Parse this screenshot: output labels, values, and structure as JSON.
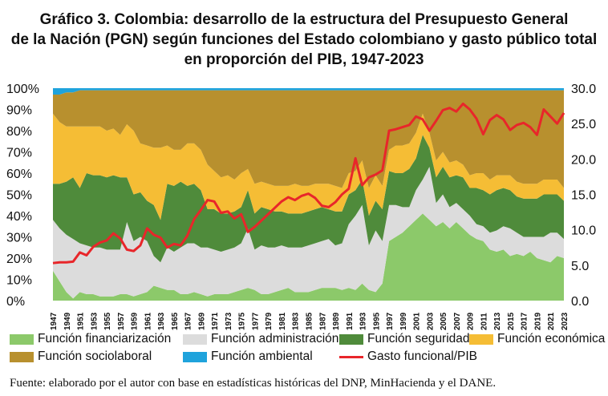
{
  "title_lines": [
    "Gráfico 3. Colombia: desarrollo de la estructura del Presupuesto General",
    "de la Nación (PGN) según funciones del Estado colombiano y gasto público total",
    "en proporción del PIB, 1947-2023"
  ],
  "source": "Fuente: elaborado por el autor con base en estadísticas históricas del DNP, MinHacienda y el DANE.",
  "legend": [
    {
      "label": "Función financiarización",
      "color": "#8cc96a",
      "kind": "area"
    },
    {
      "label": "Función administración",
      "color": "#dcdcdc",
      "kind": "area"
    },
    {
      "label": "Función seguridad",
      "color": "#4f8b3b",
      "kind": "area"
    },
    {
      "label": "Función económica",
      "color": "#f5bd35",
      "kind": "area"
    },
    {
      "label": "Función sociolaboral",
      "color": "#b8902e",
      "kind": "area"
    },
    {
      "label": "Función ambiental",
      "color": "#1fa3dc",
      "kind": "area"
    },
    {
      "label": "Gasto funcional/PIB",
      "color": "#e8262a",
      "kind": "line"
    }
  ],
  "chart_data": {
    "type": "area",
    "stacked": true,
    "x": [
      1947,
      1948,
      1949,
      1950,
      1951,
      1952,
      1953,
      1954,
      1955,
      1956,
      1957,
      1958,
      1959,
      1960,
      1961,
      1962,
      1963,
      1964,
      1965,
      1966,
      1967,
      1968,
      1969,
      1970,
      1971,
      1972,
      1973,
      1974,
      1975,
      1976,
      1977,
      1978,
      1979,
      1980,
      1981,
      1982,
      1983,
      1984,
      1985,
      1986,
      1987,
      1988,
      1989,
      1990,
      1991,
      1992,
      1993,
      1994,
      1995,
      1996,
      1997,
      1998,
      1999,
      2000,
      2001,
      2002,
      2003,
      2004,
      2005,
      2006,
      2007,
      2008,
      2009,
      2010,
      2011,
      2012,
      2013,
      2014,
      2015,
      2016,
      2017,
      2018,
      2019,
      2020,
      2021,
      2022,
      2023
    ],
    "x_tick_labels": [
      "1947",
      "1949",
      "1951",
      "1953",
      "1955",
      "1957",
      "1959",
      "1961",
      "1963",
      "1965",
      "1967",
      "1969",
      "1971",
      "1973",
      "1975",
      "1977",
      "1979",
      "1981",
      "1983",
      "1985",
      "1987",
      "1989",
      "1991",
      "1993",
      "1995",
      "1997",
      "1999",
      "2001",
      "2003",
      "2005",
      "2007",
      "2009",
      "2011",
      "2013",
      "2015",
      "2017",
      "2019",
      "2021",
      "2023"
    ],
    "y_left_ticks": [
      "0%",
      "10%",
      "20%",
      "30%",
      "40%",
      "50%",
      "60%",
      "70%",
      "80%",
      "90%",
      "100%"
    ],
    "y_left_range": [
      0,
      100
    ],
    "y_right_ticks": [
      "0.0",
      "5.0",
      "10.0",
      "15.0",
      "20.0",
      "25.0",
      "30.0"
    ],
    "y_right_range": [
      0,
      30
    ],
    "series": [
      {
        "name": "Función financiarización",
        "color": "#8cc96a",
        "values": [
          14,
          9,
          4,
          1,
          4,
          3,
          3,
          2,
          2,
          2,
          3,
          3,
          2,
          3,
          4,
          7,
          6,
          5,
          5,
          3,
          3,
          4,
          3,
          2,
          3,
          3,
          3,
          4,
          5,
          6,
          5,
          3,
          3,
          4,
          5,
          6,
          4,
          4,
          4,
          5,
          6,
          6,
          6,
          5,
          6,
          5,
          8,
          5,
          4,
          8,
          28,
          30,
          32,
          35,
          38,
          41,
          38,
          35,
          37,
          34,
          37,
          34,
          31,
          29,
          28,
          24,
          23,
          24,
          21,
          22,
          21,
          23,
          20,
          19,
          18,
          21,
          20
        ]
      },
      {
        "name": "Función administración",
        "color": "#dcdcdc",
        "values": [
          24,
          25,
          27,
          28,
          23,
          23,
          22,
          23,
          22,
          22,
          21,
          34,
          26,
          27,
          24,
          14,
          12,
          20,
          18,
          22,
          24,
          23,
          22,
          23,
          21,
          20,
          21,
          21,
          22,
          28,
          19,
          23,
          22,
          21,
          21,
          19,
          21,
          21,
          22,
          22,
          22,
          23,
          20,
          22,
          30,
          35,
          37,
          21,
          29,
          20,
          17,
          15,
          12,
          9,
          14,
          16,
          25,
          11,
          13,
          10,
          9,
          9,
          9,
          7,
          7,
          8,
          10,
          11,
          13,
          10,
          9,
          7,
          10,
          11,
          14,
          11,
          9
        ]
      },
      {
        "name": "Función seguridad",
        "color": "#4f8b3b",
        "values": [
          17,
          21,
          25,
          29,
          26,
          34,
          34,
          34,
          34,
          35,
          34,
          21,
          22,
          21,
          19,
          24,
          20,
          30,
          31,
          31,
          27,
          28,
          27,
          18,
          19,
          18,
          17,
          17,
          17,
          18,
          17,
          18,
          18,
          17,
          16,
          16,
          16,
          16,
          16,
          16,
          16,
          14,
          16,
          15,
          14,
          12,
          12,
          14,
          14,
          15,
          16,
          15,
          16,
          18,
          15,
          21,
          9,
          12,
          13,
          14,
          13,
          15,
          13,
          17,
          17,
          18,
          19,
          18,
          18,
          17,
          18,
          18,
          18,
          20,
          18,
          18,
          18
        ]
      },
      {
        "name": "Función económica",
        "color": "#f5bd35",
        "values": [
          33,
          29,
          26,
          24,
          29,
          22,
          23,
          23,
          22,
          22,
          20,
          25,
          30,
          23,
          26,
          27,
          34,
          18,
          17,
          15,
          20,
          19,
          19,
          21,
          18,
          17,
          18,
          15,
          16,
          10,
          14,
          12,
          12,
          12,
          12,
          13,
          14,
          13,
          12,
          12,
          11,
          12,
          12,
          11,
          10,
          9,
          9,
          13,
          12,
          11,
          10,
          13,
          13,
          12,
          12,
          10,
          7,
          8,
          7,
          7,
          7,
          6,
          6,
          7,
          8,
          7,
          7,
          6,
          7,
          7,
          7,
          7,
          7,
          7,
          7,
          7,
          6
        ]
      },
      {
        "name": "Función sociolaboral",
        "color": "#b8902e",
        "values": [
          9,
          13,
          16,
          16,
          17,
          17,
          17,
          17,
          19,
          18,
          21,
          16,
          19,
          25,
          26,
          27,
          27,
          26,
          28,
          28,
          25,
          25,
          28,
          35,
          38,
          41,
          40,
          42,
          39,
          37,
          44,
          43,
          44,
          45,
          45,
          45,
          44,
          45,
          45,
          44,
          44,
          44,
          45,
          46,
          39,
          38,
          33,
          46,
          40,
          45,
          28,
          26,
          26,
          25,
          20,
          11,
          20,
          33,
          29,
          34,
          33,
          35,
          40,
          39,
          39,
          42,
          40,
          40,
          40,
          43,
          44,
          44,
          44,
          42,
          42,
          42,
          46
        ]
      },
      {
        "name": "Función ambiental",
        "color": "#1fa3dc",
        "values": [
          3,
          3,
          2,
          2,
          1,
          1,
          1,
          1,
          1,
          1,
          1,
          1,
          1,
          1,
          1,
          1,
          1,
          1,
          1,
          1,
          1,
          1,
          1,
          1,
          1,
          1,
          1,
          1,
          1,
          1,
          1,
          1,
          1,
          1,
          1,
          1,
          1,
          1,
          1,
          1,
          1,
          1,
          1,
          1,
          1,
          1,
          1,
          1,
          1,
          1,
          1,
          1,
          1,
          1,
          1,
          1,
          1,
          1,
          1,
          1,
          1,
          1,
          1,
          1,
          1,
          1,
          1,
          1,
          1,
          1,
          1,
          1,
          1,
          1,
          1,
          1,
          1
        ]
      }
    ],
    "line_series": {
      "name": "Gasto funcional/PIB",
      "color": "#e8262a",
      "axis": "right",
      "values": [
        5.3,
        5.4,
        5.4,
        5.5,
        6.8,
        6.4,
        7.6,
        8.2,
        8.5,
        9.5,
        8.8,
        7.2,
        7.0,
        7.8,
        10.2,
        9.3,
        8.9,
        7.5,
        8.0,
        7.8,
        9.2,
        11.5,
        12.8,
        14.2,
        14.0,
        12.4,
        12.6,
        11.6,
        12.2,
        9.7,
        10.4,
        11.3,
        12.2,
        13.1,
        14.0,
        14.6,
        14.2,
        14.8,
        15.1,
        14.5,
        13.4,
        13.2,
        13.9,
        15.0,
        15.8,
        20.1,
        16.3,
        17.4,
        17.8,
        18.4,
        24.0,
        24.2,
        24.5,
        24.8,
        26.0,
        25.6,
        24.0,
        25.4,
        26.9,
        27.2,
        26.7,
        27.8,
        27.0,
        25.7,
        23.5,
        25.5,
        26.2,
        25.6,
        24.1,
        24.8,
        25.1,
        24.5,
        23.4,
        27.0,
        26.0,
        25.0,
        26.5
      ]
    }
  }
}
